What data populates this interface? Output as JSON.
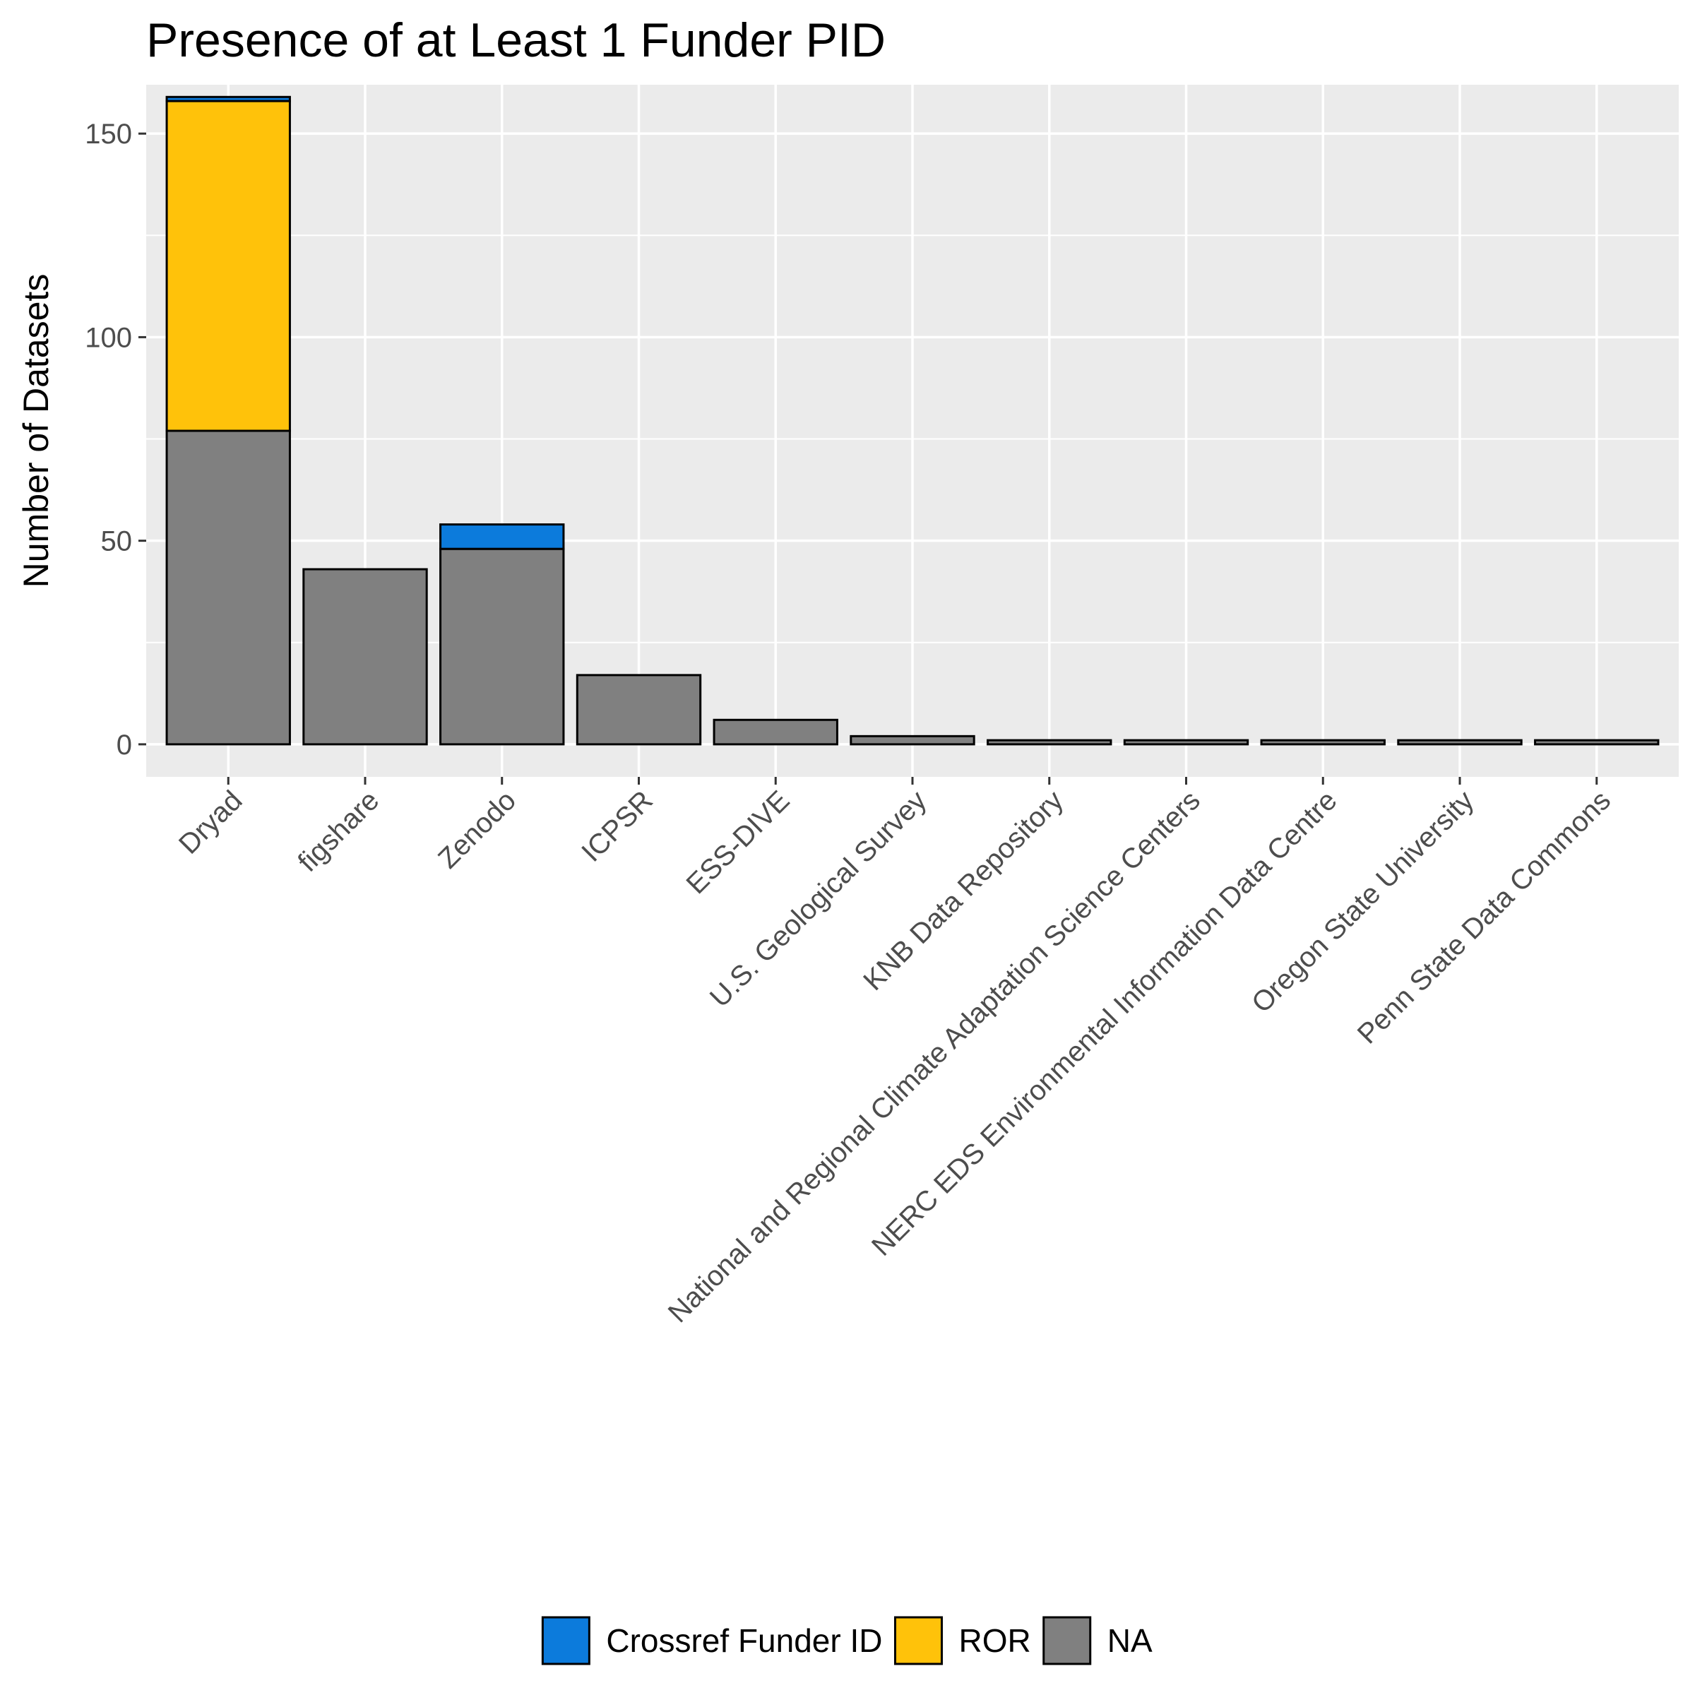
{
  "chart_data": {
    "type": "bar",
    "stacked": true,
    "title": "Presence of at Least 1 Funder PID",
    "xlabel": "",
    "ylabel": "Number of Datasets",
    "ylim": [
      -8,
      162
    ],
    "yticks": [
      0,
      50,
      100,
      150
    ],
    "grid": true,
    "legend_position": "bottom",
    "categories": [
      "Dryad",
      "figshare",
      "Zenodo",
      "ICPSR",
      "ESS-DIVE",
      "U.S. Geological Survey",
      "KNB Data Repository",
      "National and Regional Climate Adaptation Science Centers",
      "NERC EDS Environmental Information Data Centre",
      "Oregon State University",
      "Penn State Data Commons"
    ],
    "series": [
      {
        "name": "NA",
        "color": "#808080",
        "values": [
          77,
          43,
          48,
          17,
          6,
          2,
          1,
          1,
          1,
          1,
          1
        ]
      },
      {
        "name": "ROR",
        "color": "#FFC20A",
        "values": [
          81,
          0,
          0,
          0,
          0,
          0,
          0,
          0,
          0,
          0,
          0
        ]
      },
      {
        "name": "Crossref Funder ID",
        "color": "#0C7BDC",
        "values": [
          1,
          0,
          6,
          0,
          0,
          0,
          0,
          0,
          0,
          0,
          0
        ]
      }
    ],
    "legend": [
      "Crossref Funder ID",
      "ROR",
      "NA"
    ]
  }
}
